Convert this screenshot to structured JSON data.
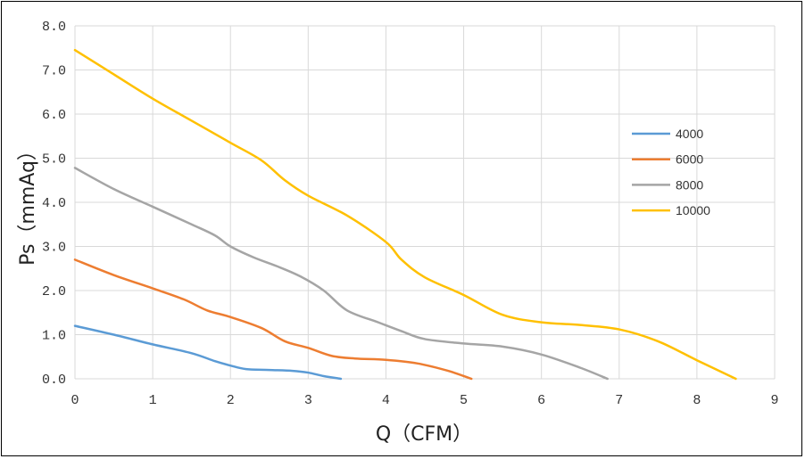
{
  "chart_data": {
    "type": "line",
    "title": "",
    "xlabel": "Q（CFM）",
    "ylabel": "Ps（mmAq）",
    "xlim": [
      0,
      9
    ],
    "ylim": [
      0,
      8
    ],
    "x_ticks": [
      "0",
      "1",
      "2",
      "3",
      "4",
      "5",
      "6",
      "7",
      "8",
      "9"
    ],
    "y_ticks": [
      "0.0",
      "1.0",
      "2.0",
      "3.0",
      "4.0",
      "5.0",
      "6.0",
      "7.0",
      "8.0"
    ],
    "grid": true,
    "legend_position": "right",
    "series": [
      {
        "name": "4000",
        "color": "#5B9BD5",
        "x": [
          0,
          0.5,
          1.0,
          1.5,
          1.8,
          2.0,
          2.2,
          2.5,
          2.8,
          3.0,
          3.2,
          3.42
        ],
        "y": [
          1.2,
          1.0,
          0.78,
          0.58,
          0.4,
          0.3,
          0.22,
          0.2,
          0.18,
          0.14,
          0.06,
          0.0
        ]
      },
      {
        "name": "6000",
        "color": "#ED7D31",
        "x": [
          0,
          0.5,
          1.0,
          1.4,
          1.7,
          2.0,
          2.4,
          2.7,
          3.0,
          3.3,
          3.6,
          4.0,
          4.4,
          4.8,
          5.1
        ],
        "y": [
          2.7,
          2.35,
          2.05,
          1.8,
          1.55,
          1.4,
          1.15,
          0.85,
          0.7,
          0.52,
          0.46,
          0.43,
          0.35,
          0.18,
          0.0
        ]
      },
      {
        "name": "8000",
        "color": "#A5A5A5",
        "x": [
          0,
          0.5,
          1.0,
          1.5,
          1.8,
          2.0,
          2.3,
          2.6,
          2.9,
          3.2,
          3.5,
          3.9,
          4.2,
          4.5,
          5.0,
          5.5,
          6.0,
          6.5,
          6.85
        ],
        "y": [
          4.78,
          4.3,
          3.9,
          3.5,
          3.25,
          3.0,
          2.75,
          2.55,
          2.32,
          2.0,
          1.55,
          1.28,
          1.08,
          0.9,
          0.8,
          0.73,
          0.55,
          0.25,
          0.0
        ]
      },
      {
        "name": "10000",
        "color": "#FFC000",
        "x": [
          0,
          0.5,
          1.0,
          1.5,
          2.0,
          2.4,
          2.7,
          3.0,
          3.5,
          4.0,
          4.2,
          4.5,
          5.0,
          5.5,
          6.0,
          6.5,
          7.0,
          7.5,
          8.0,
          8.5
        ],
        "y": [
          7.45,
          6.9,
          6.35,
          5.85,
          5.35,
          4.95,
          4.5,
          4.15,
          3.7,
          3.1,
          2.7,
          2.3,
          1.9,
          1.45,
          1.28,
          1.22,
          1.12,
          0.85,
          0.42,
          0.0
        ]
      }
    ]
  }
}
